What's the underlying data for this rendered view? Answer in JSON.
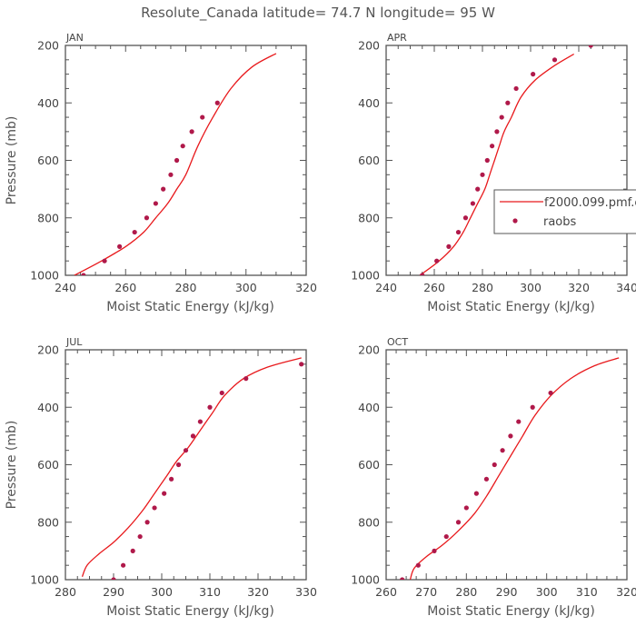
{
  "page_title": "Resolute_Canada  latitude= 74.7 N longitude= 95 W",
  "legend": {
    "model_label": "f2000.099.pmf.c",
    "obs_label": "raobs"
  },
  "colors": {
    "model": "#e8191c",
    "obs": "#b0194a",
    "axis": "#555555"
  },
  "chart_data": [
    {
      "type": "line",
      "panel": "JAN",
      "xlabel": "Moist Static Energy (kJ/kg)",
      "ylabel": "Pressure (mb)",
      "xlim": [
        240,
        320
      ],
      "ylim": [
        1000,
        200
      ],
      "y_inverted": true,
      "x_ticks": [
        240,
        260,
        280,
        300,
        320
      ],
      "y_ticks": [
        200,
        400,
        600,
        800,
        1000
      ],
      "series": [
        {
          "name": "f2000.099.pmf.c",
          "kind": "line",
          "x": [
            243,
            252,
            260,
            266,
            270,
            274,
            277,
            280,
            284,
            289,
            295,
            302,
            310
          ],
          "y": [
            1000,
            950,
            900,
            850,
            800,
            750,
            700,
            650,
            550,
            450,
            350,
            275,
            228
          ]
        },
        {
          "name": "raobs",
          "kind": "scatter",
          "x": [
            246,
            253,
            258,
            263,
            267,
            270,
            272.5,
            275,
            277,
            279,
            282,
            285.5,
            290.5
          ],
          "y": [
            1000,
            950,
            900,
            850,
            800,
            750,
            700,
            650,
            600,
            550,
            500,
            450,
            400
          ]
        }
      ]
    },
    {
      "type": "line",
      "panel": "APR",
      "xlabel": "Moist Static Energy (kJ/kg)",
      "ylabel": "",
      "xlim": [
        240,
        340
      ],
      "ylim": [
        1000,
        200
      ],
      "y_inverted": true,
      "x_ticks": [
        240,
        260,
        280,
        300,
        320,
        340
      ],
      "y_ticks": [
        200,
        400,
        600,
        800,
        1000
      ],
      "series": [
        {
          "name": "f2000.099.pmf.c",
          "kind": "line",
          "x": [
            254,
            262,
            268,
            272,
            275,
            278,
            281,
            283,
            285,
            287,
            289,
            292,
            296,
            302,
            310,
            318
          ],
          "y": [
            1000,
            950,
            900,
            850,
            800,
            750,
            700,
            650,
            600,
            550,
            500,
            450,
            380,
            320,
            270,
            230
          ]
        },
        {
          "name": "raobs",
          "kind": "scatter",
          "x": [
            255,
            261,
            266,
            270,
            273,
            276,
            278,
            280,
            282,
            284,
            286,
            288,
            290.5,
            294,
            301,
            310,
            325
          ],
          "y": [
            1000,
            950,
            900,
            850,
            800,
            750,
            700,
            650,
            600,
            550,
            500,
            450,
            400,
            350,
            300,
            250,
            200
          ]
        }
      ]
    },
    {
      "type": "line",
      "panel": "JUL",
      "xlabel": "Moist Static Energy (kJ/kg)",
      "ylabel": "Pressure (mb)",
      "xlim": [
        280,
        330
      ],
      "ylim": [
        1000,
        200
      ],
      "y_inverted": true,
      "x_ticks": [
        280,
        290,
        300,
        310,
        320,
        330
      ],
      "y_ticks": [
        200,
        400,
        600,
        800,
        1000
      ],
      "series": [
        {
          "name": "f2000.099.pmf.c",
          "kind": "line",
          "x": [
            283.5,
            284.5,
            287,
            290,
            293,
            296,
            298.5,
            301,
            303,
            305.5,
            308,
            310.5,
            313,
            317,
            322,
            329
          ],
          "y": [
            990,
            950,
            910,
            870,
            820,
            760,
            700,
            640,
            590,
            540,
            480,
            420,
            360,
            300,
            260,
            228
          ]
        },
        {
          "name": "raobs",
          "kind": "scatter",
          "x": [
            290,
            292,
            294,
            295.5,
            297,
            298.5,
            300.5,
            302,
            303.5,
            305,
            306.5,
            308,
            310,
            312.5,
            317.5,
            329
          ],
          "y": [
            1000,
            950,
            900,
            850,
            800,
            750,
            700,
            650,
            600,
            550,
            500,
            450,
            400,
            350,
            300,
            250
          ]
        }
      ]
    },
    {
      "type": "line",
      "panel": "OCT",
      "xlabel": "Moist Static Energy (kJ/kg)",
      "ylabel": "",
      "xlim": [
        260,
        320
      ],
      "ylim": [
        1000,
        200
      ],
      "y_inverted": true,
      "x_ticks": [
        260,
        270,
        280,
        290,
        300,
        310,
        320
      ],
      "y_ticks": [
        200,
        400,
        600,
        800,
        1000
      ],
      "series": [
        {
          "name": "f2000.099.pmf.c",
          "kind": "line",
          "x": [
            266,
            267,
            270,
            274,
            278,
            282,
            285,
            288,
            291,
            294,
            297,
            301,
            306,
            312,
            318
          ],
          "y": [
            1000,
            960,
            920,
            880,
            830,
            770,
            710,
            640,
            570,
            500,
            430,
            360,
            300,
            255,
            228
          ]
        },
        {
          "name": "raobs",
          "kind": "scatter",
          "x": [
            264,
            268,
            272,
            275,
            278,
            280,
            282.5,
            285,
            287,
            289,
            291,
            293,
            296.5,
            301
          ],
          "y": [
            1000,
            950,
            900,
            850,
            800,
            750,
            700,
            650,
            600,
            550,
            500,
            450,
            400,
            350
          ]
        }
      ]
    }
  ]
}
